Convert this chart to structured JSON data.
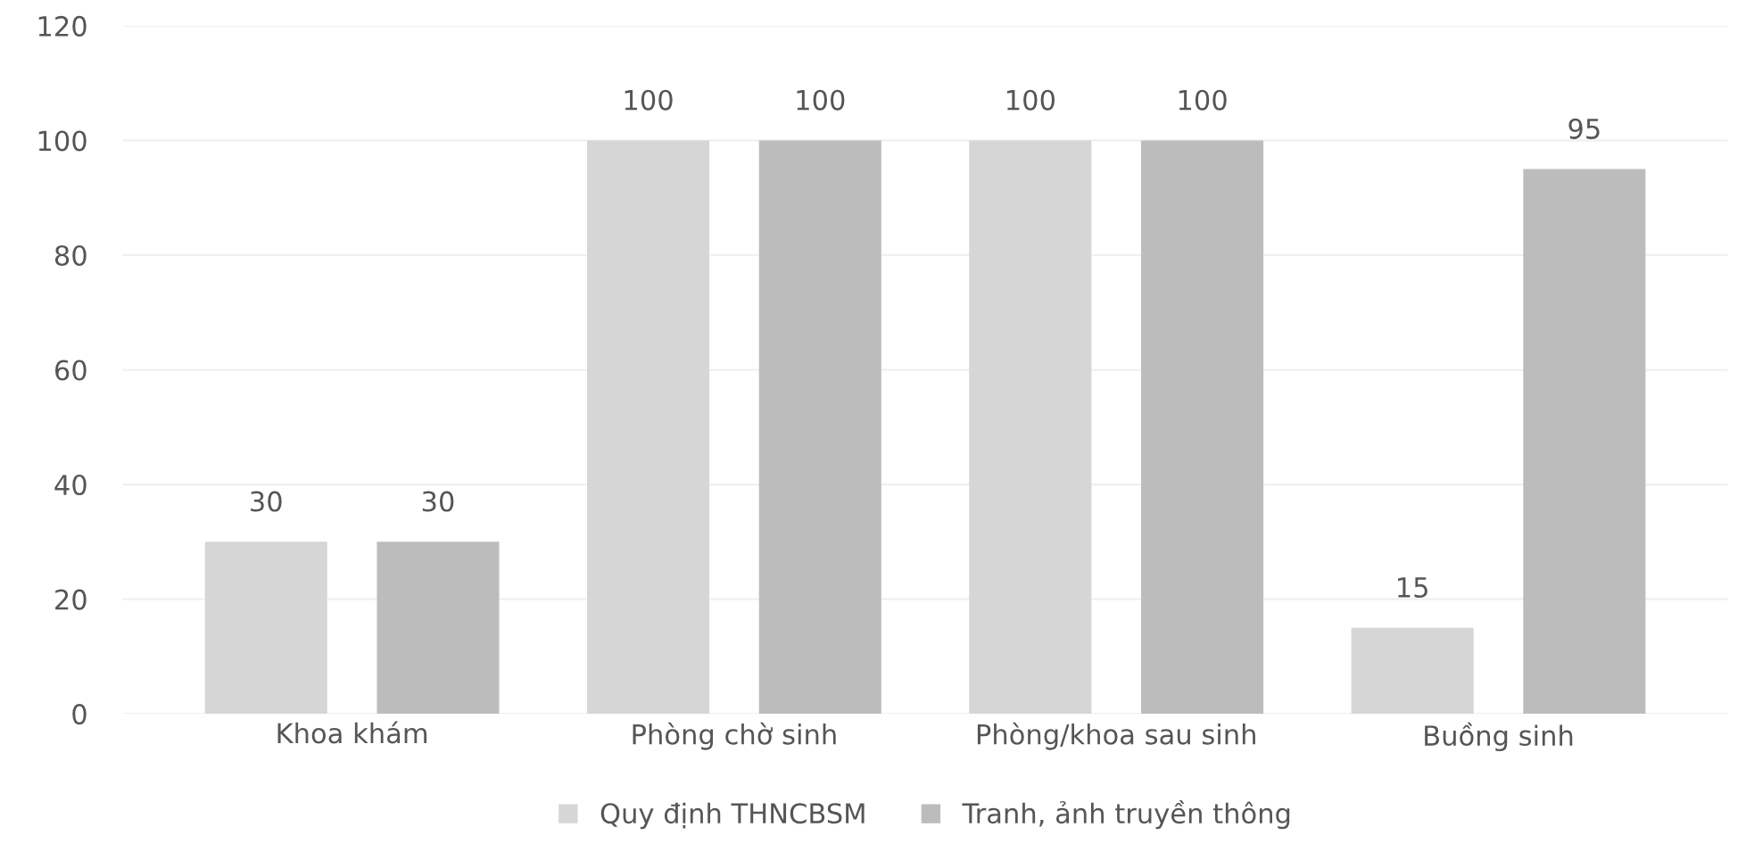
{
  "chart_data": {
    "type": "bar",
    "categories": [
      "Khoa khám",
      "Phòng chờ sinh",
      "Phòng/khoa sau sinh",
      "Buồng sinh"
    ],
    "series": [
      {
        "name": "Quy định THNCBSM",
        "color": "#d6d6d6",
        "values": [
          30,
          100,
          100,
          15
        ]
      },
      {
        "name": "Tranh, ảnh truyền thông",
        "color": "#bcbcbc",
        "values": [
          30,
          100,
          100,
          95
        ]
      }
    ],
    "ylim": [
      0,
      120
    ],
    "yticks": [
      0,
      20,
      40,
      60,
      80,
      100,
      120
    ],
    "grid": "y",
    "legend": "bottom",
    "data_labels": true
  }
}
